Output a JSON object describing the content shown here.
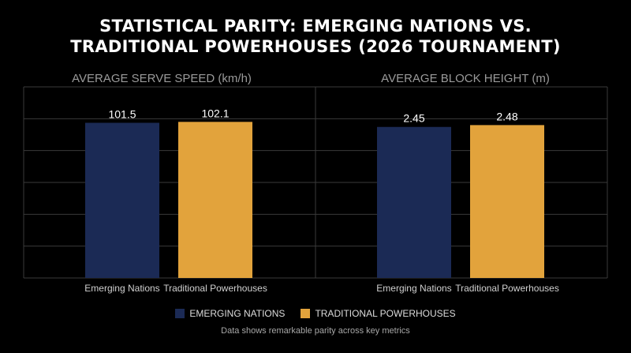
{
  "title_line1": "STATISTICAL PARITY: EMERGING NATIONS VS.",
  "title_line2": "TRADITIONAL POWERHOUSES (2026 TOURNAMENT)",
  "colors": {
    "emerging": "#1b2a55",
    "traditional": "#e2a33c",
    "grid": "#3a3a3a",
    "axis_text": "#d0d0d0"
  },
  "legend": {
    "emerging": "EMERGING NATIONS",
    "traditional": "TRADITIONAL POWERHOUSES"
  },
  "footnote": "Data shows remarkable parity across key metrics",
  "chart_data": [
    {
      "type": "bar",
      "title": "AVERAGE SERVE SPEED (km/h)",
      "categories": [
        "Emerging Nations",
        "Traditional Powerhouses"
      ],
      "values": [
        101.5,
        102.1
      ],
      "value_labels": [
        "101.5",
        "102.1"
      ],
      "ylim": [
        0,
        125
      ],
      "grid": true
    },
    {
      "type": "bar",
      "title": "AVERAGE BLOCK HEIGHT (m)",
      "categories": [
        "Emerging Nations",
        "Traditional Powerhouses"
      ],
      "values": [
        2.45,
        2.48
      ],
      "value_labels": [
        "2.45",
        "2.48"
      ],
      "ylim": [
        0,
        3.1
      ],
      "grid": true
    }
  ]
}
